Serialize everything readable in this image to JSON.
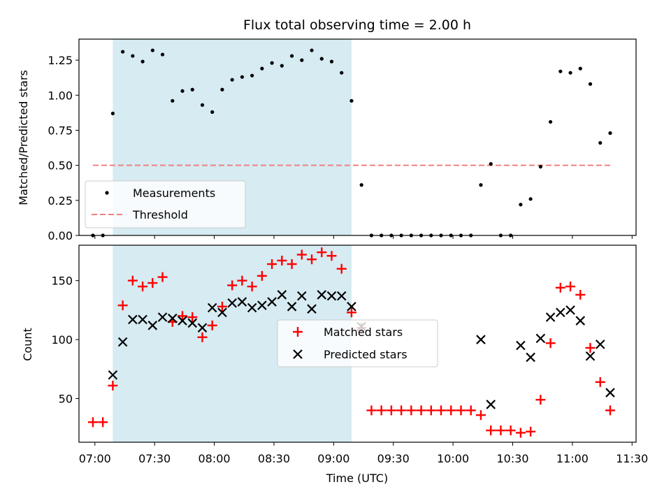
{
  "chart_data": [
    {
      "type": "scatter",
      "title": "Flux total observing time = 2.00 h",
      "xlabel": "",
      "ylabel": "Matched/Predicted stars",
      "x_unit": "UTC time (HH:MM)",
      "xlim": [
        "06:52",
        "11:32"
      ],
      "ylim": [
        0,
        1.4
      ],
      "yticks": [
        "0.00",
        "0.25",
        "0.50",
        "0.75",
        "1.00",
        "1.25"
      ],
      "shaded_span": {
        "start": "07:09",
        "end": "09:09",
        "color": "#add8e6"
      },
      "legend": {
        "position": "lower-left",
        "entries": [
          "Measurements",
          "Threshold"
        ]
      },
      "series": [
        {
          "name": "Measurements",
          "marker": "dot",
          "color": "#000000",
          "x": [
            "06:59",
            "07:04",
            "07:09",
            "07:14",
            "07:19",
            "07:24",
            "07:29",
            "07:34",
            "07:39",
            "07:44",
            "07:49",
            "07:54",
            "07:59",
            "08:04",
            "08:09",
            "08:14",
            "08:19",
            "08:24",
            "08:29",
            "08:34",
            "08:39",
            "08:44",
            "08:49",
            "08:54",
            "08:59",
            "09:04",
            "09:09",
            "09:14",
            "09:19",
            "09:24",
            "09:29",
            "09:34",
            "09:39",
            "09:44",
            "09:49",
            "09:54",
            "09:59",
            "10:04",
            "10:09",
            "10:14",
            "10:19",
            "10:24",
            "10:29",
            "10:34",
            "10:39",
            "10:44",
            "10:49",
            "10:54",
            "10:59",
            "11:04",
            "11:09",
            "11:14",
            "11:19"
          ],
          "y": [
            0.0,
            0.0,
            0.87,
            1.31,
            1.28,
            1.24,
            1.32,
            1.29,
            0.96,
            1.03,
            1.04,
            0.93,
            0.88,
            1.04,
            1.11,
            1.13,
            1.14,
            1.19,
            1.23,
            1.21,
            1.28,
            1.25,
            1.32,
            1.26,
            1.24,
            1.16,
            0.96,
            0.36,
            0.0,
            0.0,
            0.0,
            0.0,
            0.0,
            0.0,
            0.0,
            0.0,
            0.0,
            0.0,
            0.0,
            0.36,
            0.51,
            0.0,
            0.0,
            0.22,
            0.26,
            0.49,
            0.81,
            1.17,
            1.16,
            1.19,
            1.08,
            0.66,
            0.73
          ]
        },
        {
          "name": "Threshold",
          "marker": "dashed-line",
          "color": "#f08080",
          "x": [
            "06:59",
            "11:19"
          ],
          "y": [
            0.5,
            0.5
          ]
        }
      ]
    },
    {
      "type": "scatter",
      "title": "",
      "xlabel": "Time (UTC)",
      "ylabel": "Count",
      "x_unit": "UTC time (HH:MM)",
      "xlim": [
        "06:52",
        "11:32"
      ],
      "ylim": [
        13,
        180
      ],
      "xticks": [
        "07:00",
        "07:30",
        "08:00",
        "08:30",
        "09:00",
        "09:30",
        "10:00",
        "10:30",
        "11:00",
        "11:30"
      ],
      "yticks": [
        "50",
        "100",
        "150"
      ],
      "shaded_span": {
        "start": "07:09",
        "end": "09:09",
        "color": "#add8e6"
      },
      "legend": {
        "position": "center",
        "entries": [
          "Matched stars",
          "Predicted stars"
        ]
      },
      "series": [
        {
          "name": "Matched stars",
          "marker": "plus",
          "color": "#ff0000",
          "x": [
            "06:59",
            "07:04",
            "07:09",
            "07:14",
            "07:19",
            "07:24",
            "07:29",
            "07:34",
            "07:39",
            "07:44",
            "07:49",
            "07:54",
            "07:59",
            "08:04",
            "08:09",
            "08:14",
            "08:19",
            "08:24",
            "08:29",
            "08:34",
            "08:39",
            "08:44",
            "08:49",
            "08:54",
            "08:59",
            "09:04",
            "09:09",
            "09:14",
            "09:19",
            "09:24",
            "09:29",
            "09:34",
            "09:39",
            "09:44",
            "09:49",
            "09:54",
            "09:59",
            "10:04",
            "10:09",
            "10:14",
            "10:19",
            "10:24",
            "10:29",
            "10:34",
            "10:39",
            "10:44",
            "10:49",
            "10:54",
            "10:59",
            "11:04",
            "11:09",
            "11:14",
            "11:19"
          ],
          "y": [
            30,
            30,
            61,
            129,
            150,
            145,
            148,
            153,
            115,
            120,
            119,
            102,
            112,
            128,
            146,
            150,
            145,
            154,
            164,
            167,
            164,
            172,
            168,
            174,
            171,
            160,
            123,
            110,
            40,
            40,
            40,
            40,
            40,
            40,
            40,
            40,
            40,
            40,
            40,
            36,
            23,
            23,
            23,
            21,
            22,
            49,
            97,
            144,
            145,
            138,
            93,
            64,
            40
          ]
        },
        {
          "name": "Predicted stars",
          "marker": "x",
          "color": "#000000",
          "x": [
            "07:09",
            "07:14",
            "07:19",
            "07:24",
            "07:29",
            "07:34",
            "07:39",
            "07:44",
            "07:49",
            "07:54",
            "07:59",
            "08:04",
            "08:09",
            "08:14",
            "08:19",
            "08:24",
            "08:29",
            "08:34",
            "08:39",
            "08:44",
            "08:49",
            "08:54",
            "08:59",
            "09:04",
            "09:09",
            "09:14",
            "10:14",
            "10:19",
            "10:34",
            "10:39",
            "10:44",
            "10:49",
            "10:54",
            "10:59",
            "11:04",
            "11:09",
            "11:14",
            "11:19"
          ],
          "y": [
            70,
            98,
            117,
            117,
            112,
            119,
            118,
            116,
            114,
            110,
            127,
            123,
            131,
            132,
            127,
            129,
            132,
            138,
            128,
            137,
            126,
            138,
            137,
            137,
            128,
            111,
            100,
            45,
            95,
            85,
            101,
            119,
            123,
            125,
            116,
            86,
            96,
            55
          ]
        }
      ]
    }
  ]
}
